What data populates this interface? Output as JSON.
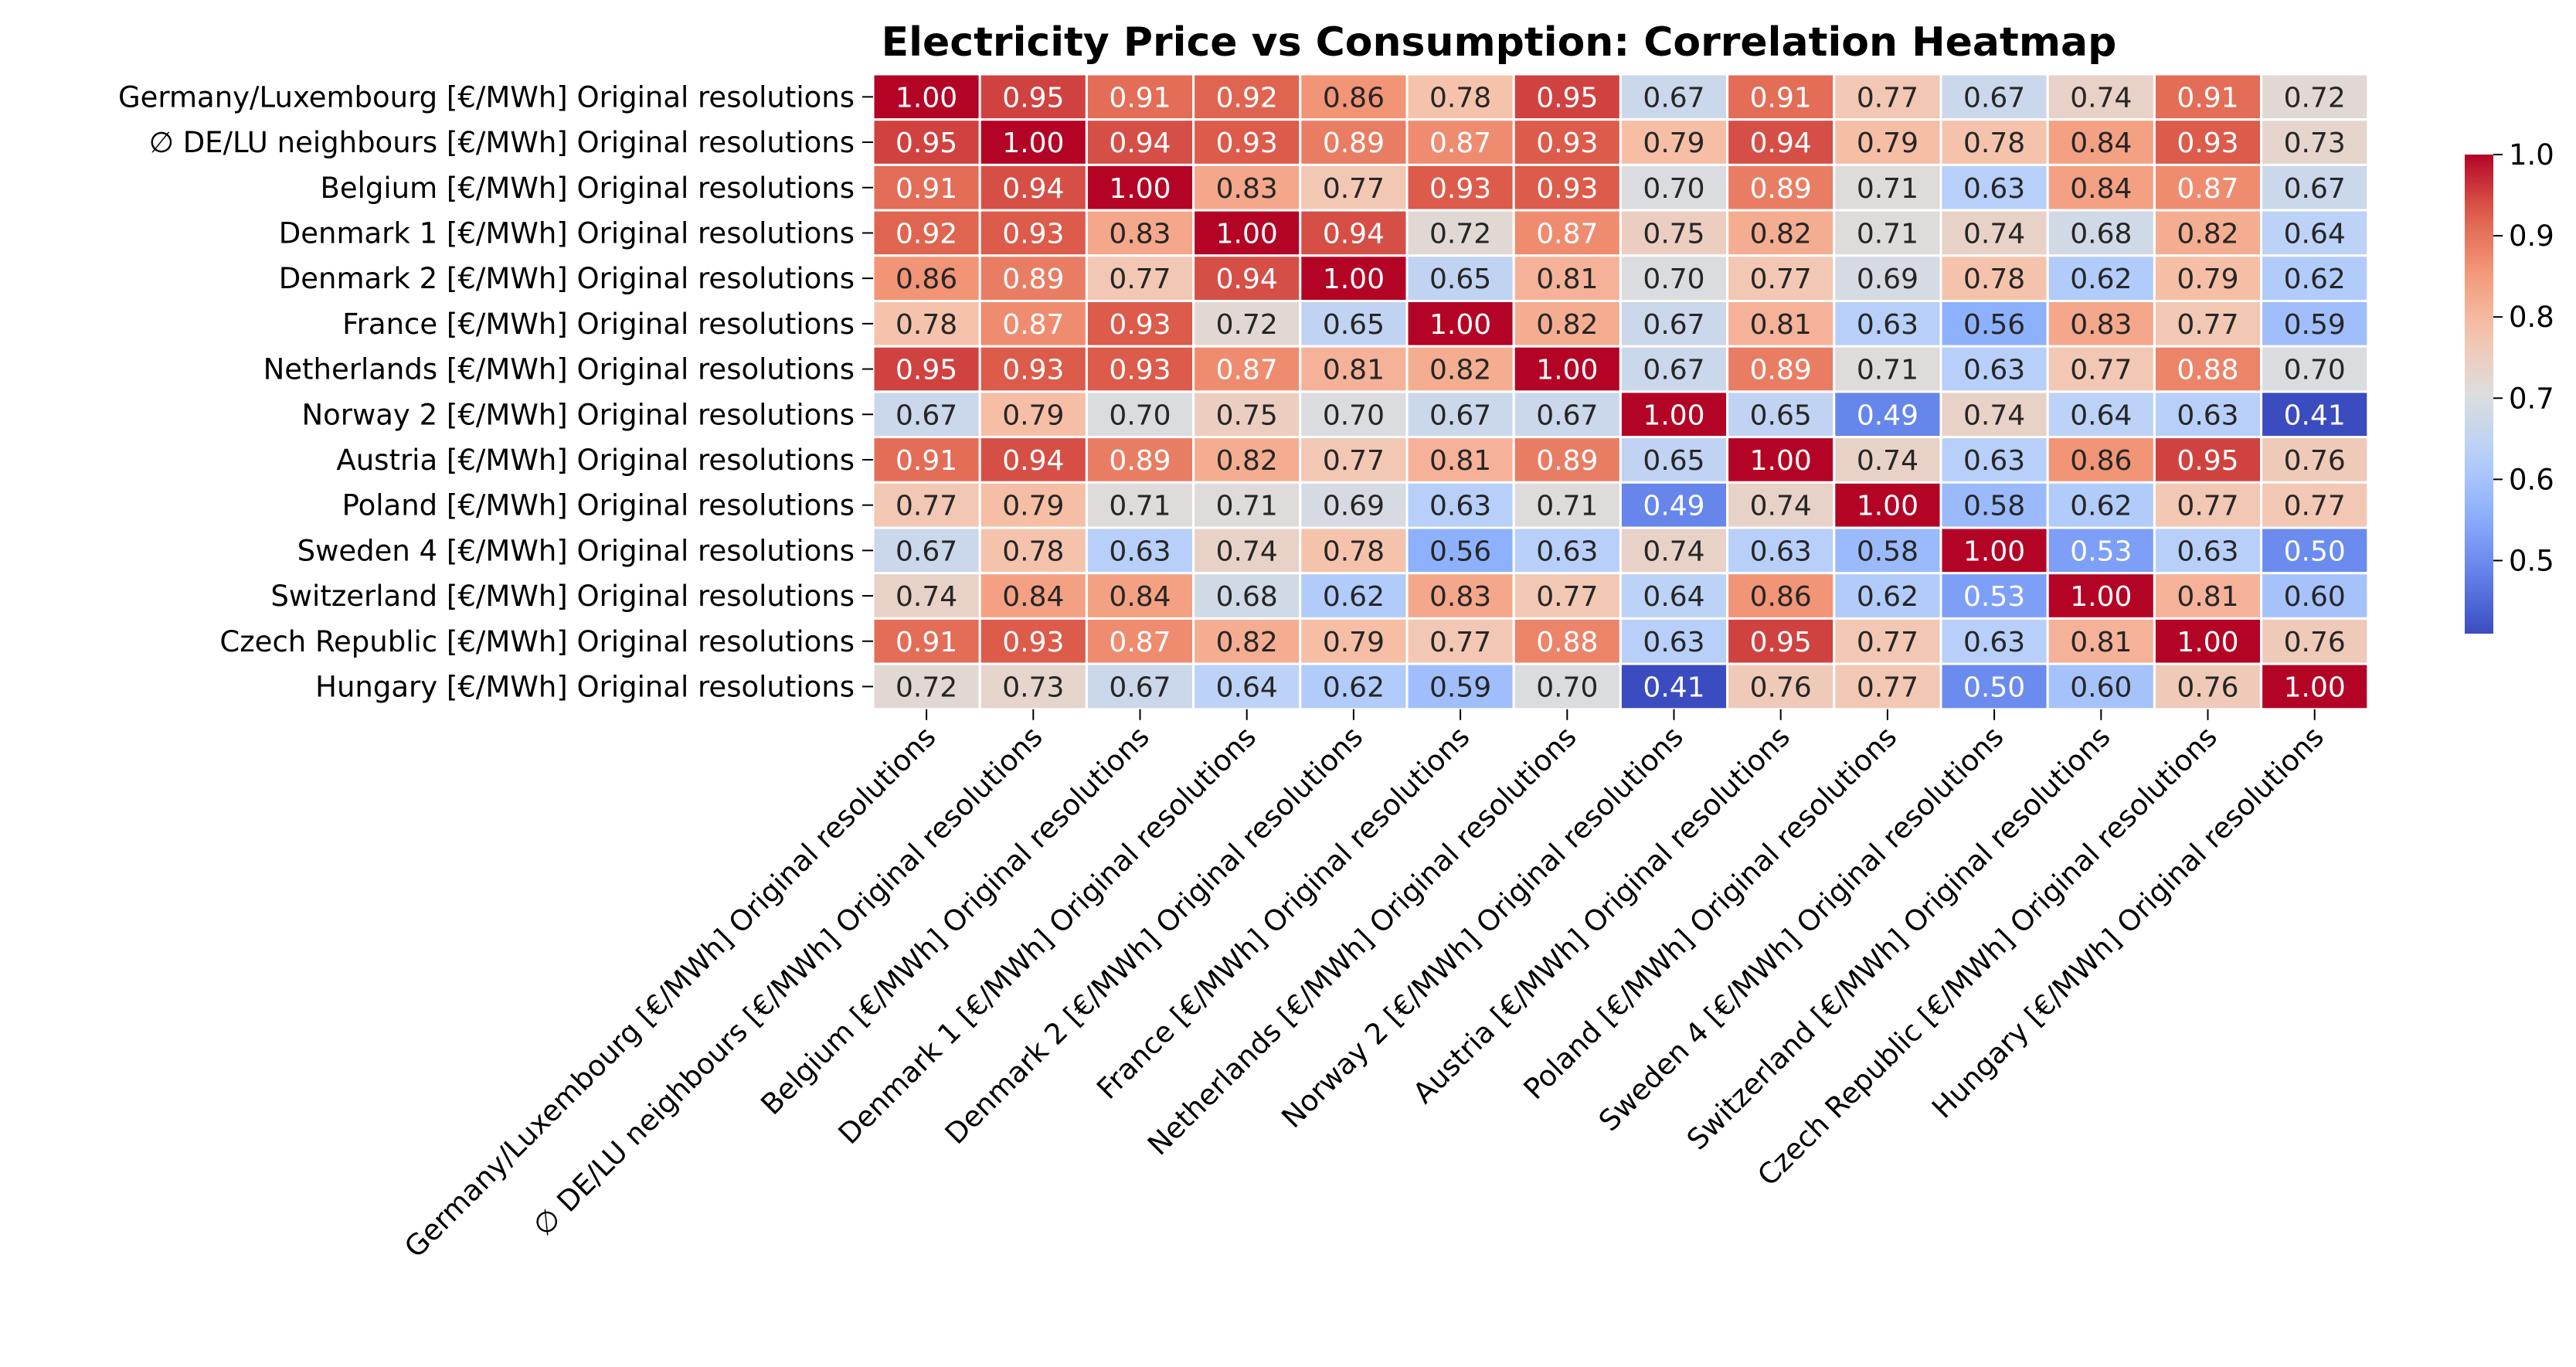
{
  "chart_data": {
    "type": "heatmap",
    "title": "Electricity Price vs Consumption: Correlation Heatmap",
    "xlabel": "",
    "ylabel": "",
    "labels": [
      "Germany/Luxembourg [€/MWh] Original resolutions",
      "∅ DE/LU neighbours [€/MWh] Original resolutions",
      "Belgium [€/MWh] Original resolutions",
      "Denmark 1 [€/MWh] Original resolutions",
      "Denmark 2 [€/MWh] Original resolutions",
      "France [€/MWh] Original resolutions",
      "Netherlands [€/MWh] Original resolutions",
      "Norway 2 [€/MWh] Original resolutions",
      "Austria [€/MWh] Original resolutions",
      "Poland [€/MWh] Original resolutions",
      "Sweden 4 [€/MWh] Original resolutions",
      "Switzerland [€/MWh] Original resolutions",
      "Czech Republic [€/MWh] Original resolutions",
      "Hungary [€/MWh] Original resolutions"
    ],
    "values": [
      [
        1.0,
        0.95,
        0.91,
        0.92,
        0.86,
        0.78,
        0.95,
        0.67,
        0.91,
        0.77,
        0.67,
        0.74,
        0.91,
        0.72
      ],
      [
        0.95,
        1.0,
        0.94,
        0.93,
        0.89,
        0.87,
        0.93,
        0.79,
        0.94,
        0.79,
        0.78,
        0.84,
        0.93,
        0.73
      ],
      [
        0.91,
        0.94,
        1.0,
        0.83,
        0.77,
        0.93,
        0.93,
        0.7,
        0.89,
        0.71,
        0.63,
        0.84,
        0.87,
        0.67
      ],
      [
        0.92,
        0.93,
        0.83,
        1.0,
        0.94,
        0.72,
        0.87,
        0.75,
        0.82,
        0.71,
        0.74,
        0.68,
        0.82,
        0.64
      ],
      [
        0.86,
        0.89,
        0.77,
        0.94,
        1.0,
        0.65,
        0.81,
        0.7,
        0.77,
        0.69,
        0.78,
        0.62,
        0.79,
        0.62
      ],
      [
        0.78,
        0.87,
        0.93,
        0.72,
        0.65,
        1.0,
        0.82,
        0.67,
        0.81,
        0.63,
        0.56,
        0.83,
        0.77,
        0.59
      ],
      [
        0.95,
        0.93,
        0.93,
        0.87,
        0.81,
        0.82,
        1.0,
        0.67,
        0.89,
        0.71,
        0.63,
        0.77,
        0.88,
        0.7
      ],
      [
        0.67,
        0.79,
        0.7,
        0.75,
        0.7,
        0.67,
        0.67,
        1.0,
        0.65,
        0.49,
        0.74,
        0.64,
        0.63,
        0.41
      ],
      [
        0.91,
        0.94,
        0.89,
        0.82,
        0.77,
        0.81,
        0.89,
        0.65,
        1.0,
        0.74,
        0.63,
        0.86,
        0.95,
        0.76
      ],
      [
        0.77,
        0.79,
        0.71,
        0.71,
        0.69,
        0.63,
        0.71,
        0.49,
        0.74,
        1.0,
        0.58,
        0.62,
        0.77,
        0.77
      ],
      [
        0.67,
        0.78,
        0.63,
        0.74,
        0.78,
        0.56,
        0.63,
        0.74,
        0.63,
        0.58,
        1.0,
        0.53,
        0.63,
        0.5
      ],
      [
        0.74,
        0.84,
        0.84,
        0.68,
        0.62,
        0.83,
        0.77,
        0.64,
        0.86,
        0.62,
        0.53,
        1.0,
        0.81,
        0.6
      ],
      [
        0.91,
        0.93,
        0.87,
        0.82,
        0.79,
        0.77,
        0.88,
        0.63,
        0.95,
        0.77,
        0.63,
        0.81,
        1.0,
        0.76
      ],
      [
        0.72,
        0.73,
        0.67,
        0.64,
        0.62,
        0.59,
        0.7,
        0.41,
        0.76,
        0.77,
        0.5,
        0.6,
        0.76,
        1.0
      ]
    ],
    "value_range": [
      0.41,
      1.0
    ],
    "colormap": "coolwarm",
    "colorbar": {
      "ticks": [
        0.5,
        0.6,
        0.7,
        0.8,
        0.9,
        1.0
      ],
      "tick_labels": [
        "0.5",
        "0.6",
        "0.7",
        "0.8",
        "0.9",
        "1.0"
      ]
    },
    "annotations": "values shown in cells with 2 decimals",
    "grid": "white lines between cells",
    "colors": {
      "cold": "#3b4cc0",
      "neutral": "#dddcdc",
      "hot": "#b40426",
      "gridline": "#ffffff"
    }
  }
}
